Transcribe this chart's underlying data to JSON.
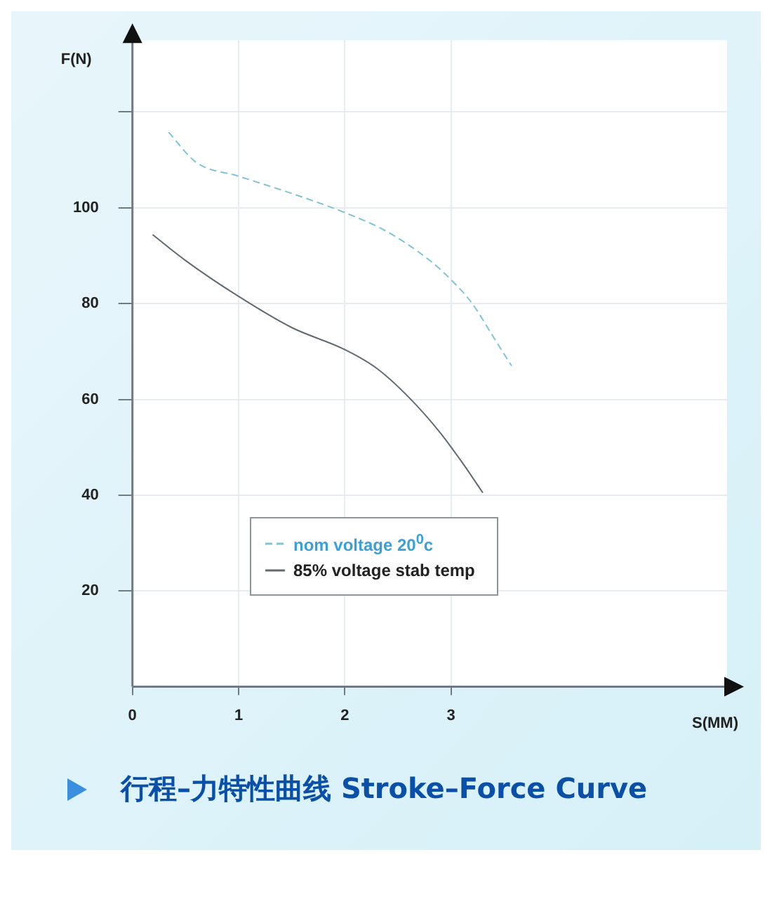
{
  "chart_data": {
    "type": "line",
    "title": "行程–力特性曲线 Stroke–Force Curve",
    "xlabel": "S(MM)",
    "ylabel": "F(N)",
    "xlim": [
      0,
      5.6
    ],
    "ylim": [
      0,
      135
    ],
    "xticks": [
      0,
      1,
      2,
      3
    ],
    "yticks": [
      20,
      40,
      60,
      80,
      100,
      {
        "value": 120,
        "label": null
      }
    ],
    "grid": true,
    "legend": "bottom",
    "marker": "none",
    "series": [
      {
        "name": "nom  voltage 20$^{0}$c",
        "color": "#7fc4d6",
        "line_style": "dashed",
        "x": [
          0.34,
          0.6,
          1.0,
          1.5,
          2.0,
          2.4,
          2.8,
          3.0,
          3.2,
          3.4,
          3.57
        ],
        "values": [
          115.8,
          109.5,
          106.6,
          103,
          99,
          95,
          89,
          85,
          80,
          73,
          67
        ]
      },
      {
        "name": "85%  voltage stab temp",
        "color": "#606a70",
        "line_style": "solid",
        "x": [
          0.19,
          0.5,
          1.0,
          1.5,
          2.0,
          2.3,
          2.6,
          2.9,
          3.1,
          3.3
        ],
        "values": [
          94.4,
          89,
          81.5,
          75,
          70.4,
          66.5,
          60.5,
          53,
          47,
          40.5
        ]
      }
    ]
  }
}
